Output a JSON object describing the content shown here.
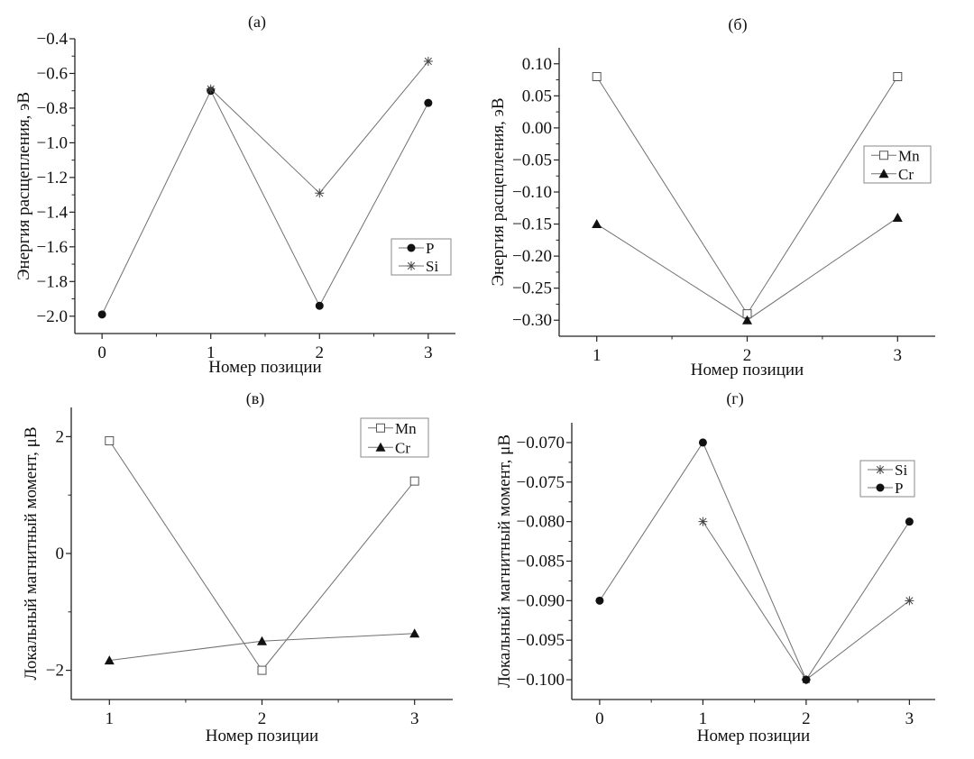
{
  "chart_data": [
    {
      "type": "line",
      "title": "(а)",
      "xlabel": "Номер позиции",
      "ylabel": "Энергия расщепления, эВ",
      "xlim": [
        -0.25,
        3.25
      ],
      "ylim": [
        -2.1,
        -0.4
      ],
      "xticks": [
        0,
        1,
        2,
        3
      ],
      "xtick_labels": [
        "0",
        "1",
        "2",
        "3"
      ],
      "xminor": [
        0.5,
        1.5,
        2.5
      ],
      "yticks": [
        -0.4,
        -0.6,
        -0.8,
        -1.0,
        -1.2,
        -1.4,
        -1.6,
        -1.8,
        -2.0
      ],
      "ytick_labels": [
        "−0.4",
        "−0.6",
        "−0.8",
        "−1.0",
        "−1.2",
        "−1.4",
        "−1.6",
        "−1.8",
        "−2.0"
      ],
      "yminor": [
        -0.5,
        -0.7,
        -0.9,
        -1.1,
        -1.3,
        -1.5,
        -1.7,
        -1.9
      ],
      "legend_position": "center-right",
      "series": [
        {
          "name": "P",
          "marker": "filled-circle",
          "x": [
            0,
            1,
            2,
            3
          ],
          "y": [
            -1.99,
            -0.7,
            -1.94,
            -0.77
          ]
        },
        {
          "name": "Si",
          "marker": "asterisk",
          "x": [
            1,
            2,
            3
          ],
          "y": [
            -0.69,
            -1.29,
            -0.53
          ]
        }
      ]
    },
    {
      "type": "line",
      "title": "(б)",
      "xlabel": "Номер позиции",
      "ylabel": "Энергия расщепления, эВ",
      "xlim": [
        0.75,
        3.25
      ],
      "ylim": [
        -0.325,
        0.125
      ],
      "xticks": [
        1,
        2,
        3
      ],
      "xtick_labels": [
        "1",
        "2",
        "3"
      ],
      "xminor": [
        1.5,
        2.5
      ],
      "yticks": [
        0.1,
        0.05,
        0.0,
        -0.05,
        -0.1,
        -0.15,
        -0.2,
        -0.25,
        -0.3
      ],
      "ytick_labels": [
        "0.10",
        "0.05",
        "0.00",
        "−0.05",
        "−0.10",
        "−0.15",
        "−0.20",
        "−0.25",
        "−0.30"
      ],
      "yminor": [
        0.075,
        0.025,
        -0.025,
        -0.075,
        -0.125,
        -0.175,
        -0.225,
        -0.275
      ],
      "legend_position": "upper-right",
      "series": [
        {
          "name": "Mn",
          "marker": "open-square",
          "x": [
            1,
            2,
            3
          ],
          "y": [
            0.08,
            -0.29,
            0.08
          ]
        },
        {
          "name": "Cr",
          "marker": "filled-triangle",
          "x": [
            1,
            2,
            3
          ],
          "y": [
            -0.15,
            -0.3,
            -0.14
          ]
        }
      ]
    },
    {
      "type": "line",
      "title": "(в)",
      "xlabel": "Номер позиции",
      "ylabel": "Локальный магнитный момент, μB",
      "xlim": [
        0.75,
        3.25
      ],
      "ylim": [
        -2.5,
        2.5
      ],
      "xticks": [
        1,
        2,
        3
      ],
      "xtick_labels": [
        "1",
        "2",
        "3"
      ],
      "xminor": [
        1.5,
        2.5
      ],
      "yticks": [
        2,
        0,
        -2
      ],
      "ytick_labels": [
        "2",
        "0",
        "−2"
      ],
      "yminor": [
        1,
        -1
      ],
      "legend_position": "upper-right",
      "series": [
        {
          "name": "Mn",
          "marker": "open-square",
          "x": [
            1,
            2,
            3
          ],
          "y": [
            1.93,
            -2.0,
            1.24
          ]
        },
        {
          "name": "Cr",
          "marker": "filled-triangle",
          "x": [
            1,
            2,
            3
          ],
          "y": [
            -1.83,
            -1.5,
            -1.37
          ]
        }
      ]
    },
    {
      "type": "line",
      "title": "(г)",
      "xlabel": "Номер позиции",
      "ylabel": "Локальный магнитный момент, μB",
      "xlim": [
        -0.27,
        3.25
      ],
      "ylim": [
        -0.1025,
        -0.0675
      ],
      "xticks": [
        0,
        1,
        2,
        3
      ],
      "xtick_labels": [
        "0",
        "1",
        "2",
        "3"
      ],
      "xminor": [
        0.5,
        1.5,
        2.5
      ],
      "yticks": [
        -0.07,
        -0.075,
        -0.08,
        -0.085,
        -0.09,
        -0.095,
        -0.1
      ],
      "ytick_labels": [
        "−0.070",
        "−0.075",
        "−0.080",
        "−0.085",
        "−0.090",
        "−0.095",
        "−0.100"
      ],
      "yminor": [
        -0.0725,
        -0.0775,
        -0.0825,
        -0.0875,
        -0.0925,
        -0.0975
      ],
      "legend_position": "upper-right",
      "series": [
        {
          "name": "Si",
          "marker": "asterisk",
          "x": [
            1,
            2,
            3
          ],
          "y": [
            -0.08,
            -0.1,
            -0.09
          ]
        },
        {
          "name": "P",
          "marker": "filled-circle",
          "x": [
            0,
            1,
            2,
            3
          ],
          "y": [
            -0.09,
            -0.07,
            -0.1,
            -0.08
          ]
        }
      ]
    }
  ],
  "colors": {
    "line": "#707070",
    "marker": "#111111",
    "axis": "#222222"
  }
}
